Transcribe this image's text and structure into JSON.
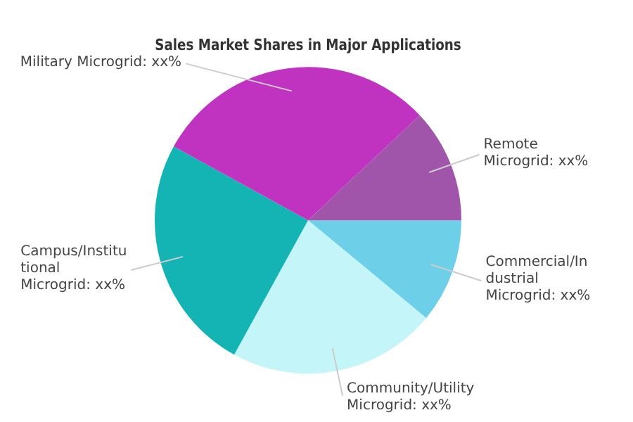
{
  "chart_data": {
    "type": "pie",
    "title": "Sales Market Shares in Major Applications",
    "categories": [
      "Commercial/Industrial Microgrid: xx%",
      "Community/Utility Microgrid: xx%",
      "Campus/Institutional Microgrid: xx%",
      "Military Microgrid: xx%",
      "Remote Microgrid: xx%"
    ],
    "values": [
      11,
      22,
      25,
      30,
      12
    ],
    "colors": [
      "#6dcfe8",
      "#c4f5f8",
      "#14b4b4",
      "#c033c0",
      "#a055aa"
    ],
    "legend": false
  }
}
